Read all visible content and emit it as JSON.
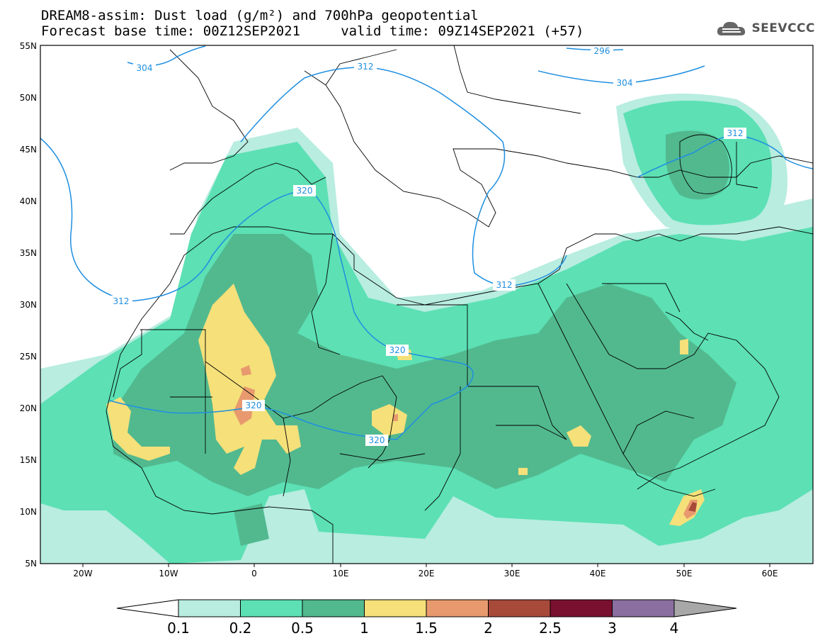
{
  "header": {
    "title_line1": "DREAM8-assim: Dust load (g/m²) and 700hPa geopotential",
    "title_line2": "Forecast base time: 00Z12SEP2021     valid time: 09Z14SEP2021 (+57)",
    "logo_text": "SEEVCCC",
    "logo_icon": "cloud-icon"
  },
  "map": {
    "projection": "lat-lon",
    "lon_range": [
      -25,
      65
    ],
    "lat_range": [
      5,
      55
    ],
    "lon_ticks": [
      "20W",
      "10W",
      "0",
      "10E",
      "20E",
      "30E",
      "40E",
      "50E",
      "60E"
    ],
    "lat_ticks": [
      "55N",
      "50N",
      "45N",
      "40N",
      "35N",
      "30N",
      "25N",
      "20N",
      "15N",
      "10N",
      "5N"
    ],
    "contour_color": "#1f8fe0",
    "contour_labels": [
      "304",
      "296",
      "304",
      "312",
      "312",
      "320",
      "312",
      "320",
      "320",
      "320",
      "312"
    ]
  },
  "colorbar": {
    "levels": [
      "0.1",
      "0.2",
      "0.5",
      "1",
      "1.5",
      "2",
      "2.5",
      "3",
      "4"
    ],
    "colors": [
      "#b8ede0",
      "#5ce0b4",
      "#52b98f",
      "#f5e07a",
      "#e89a6e",
      "#a84a3a",
      "#7a1030",
      "#8a6fa0"
    ],
    "under_color": "#ffffff",
    "over_color": "#a8a8a8"
  }
}
